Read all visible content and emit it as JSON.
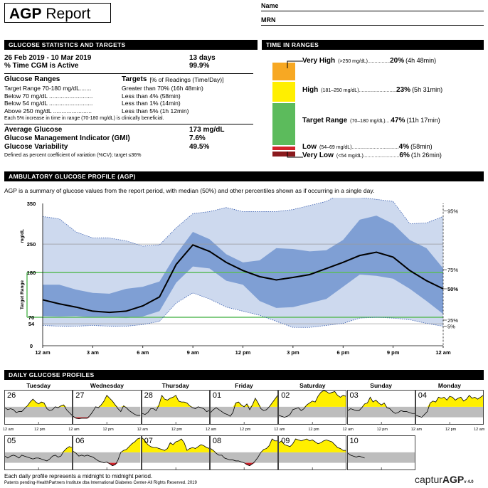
{
  "report_title_bold": "AGP",
  "report_title_rest": " Report",
  "header": {
    "name_label": "Name",
    "mrn_label": "MRN"
  },
  "stats": {
    "section_title": "GLUCOSE STATISTICS AND TARGETS",
    "date_range": "26 Feb 2019 - 10 Mar 2019",
    "days": "13 days",
    "cgm_active_label": "% Time CGM is Active",
    "cgm_active_value": "99.9%",
    "ranges_header": "Glucose Ranges",
    "targets_header": "Targets",
    "targets_note": "[% of Readings (Time/Day)]",
    "ranges": [
      {
        "label": "Target Range 70-180 mg/dL.......",
        "target": "Greater than 70% (16h 48min)"
      },
      {
        "label": "Below 70 mg/dL ..........................",
        "target": "Less than 4% (58min)"
      },
      {
        "label": "Below 54 mg/dL ..........................",
        "target": "Less than 1% (14min)"
      },
      {
        "label": "Above 250 mg/dL .......................",
        "target": "Less than 5% (1h 12min)"
      }
    ],
    "increase_note": "Each 5% increase in time in range (70-180 mg/dL) is clinically beneficial.",
    "avg_label": "Average Glucose",
    "avg_value": "173 mg/dL",
    "gmi_label": "Glucose Management Indicator (GMI)",
    "gmi_value": "7.6%",
    "var_label": "Glucose Variability",
    "var_value": "49.5%",
    "var_note": "Defined as percent coefficient of variation (%CV); target ≤36%"
  },
  "tir": {
    "section_title": "TIME IN RANGES",
    "segments": [
      {
        "name": "Very High",
        "range": "(>250 mg/dL)................",
        "pct": "20%",
        "time": "(4h 48min)",
        "color": "#f7a823",
        "value": 20
      },
      {
        "name": "High",
        "range": "(181–250 mg/dL)...........................",
        "pct": "23%",
        "time": "(5h 31min)",
        "color": "#ffef00",
        "value": 23
      },
      {
        "name": "Target Range",
        "range": "(70–180 mg/dL)....",
        "pct": "47%",
        "time": "(11h 17min)",
        "color": "#5cbb5c",
        "value": 47
      },
      {
        "name": "Low",
        "range": "(54–69 mg/dL)..................................",
        "pct": "4%",
        "time": "(58min)",
        "color": "#d2222a",
        "value": 4
      },
      {
        "name": "Very Low",
        "range": "(<54 mg/dL)..........................",
        "pct": "6%",
        "time": "(1h 26min)",
        "color": "#8b1a1e",
        "value": 6
      }
    ]
  },
  "agp": {
    "section_title": "AMBULATORY GLUCOSE PROFILE (AGP)",
    "description": "AGP is a summary of glucose values from the report period, with median (50%) and other percentiles shown as if occurring in a single day.",
    "target_range_label": "Target Range"
  },
  "chart_data": {
    "type": "line",
    "ylabel": "mg/dL",
    "ylim": [
      0,
      350
    ],
    "yticks": [
      "350",
      "250",
      "180",
      "70",
      "54",
      "0"
    ],
    "ytick_values": [
      350,
      250,
      180,
      70,
      54,
      0
    ],
    "xticks": [
      "12 am",
      "3 am",
      "6 am",
      "9 am",
      "12 pm",
      "3 pm",
      "6 pm",
      "9 pm",
      "12 am"
    ],
    "x_hours": [
      0,
      1,
      2,
      3,
      4,
      5,
      6,
      7,
      8,
      9,
      10,
      11,
      12,
      13,
      14,
      15,
      16,
      17,
      18,
      19,
      20,
      21,
      22,
      23,
      24
    ],
    "target_range": [
      70,
      180
    ],
    "percentile_labels": [
      "95%",
      "75%",
      "50%",
      "25%",
      "5%"
    ],
    "series": [
      {
        "name": "95%",
        "values": [
          318,
          312,
          280,
          265,
          265,
          258,
          245,
          248,
          290,
          325,
          330,
          340,
          330,
          330,
          330,
          335,
          345,
          355,
          378,
          365,
          360,
          355,
          300,
          302,
          318
        ]
      },
      {
        "name": "75%",
        "values": [
          150,
          150,
          138,
          130,
          128,
          140,
          145,
          158,
          225,
          280,
          262,
          225,
          205,
          210,
          240,
          238,
          232,
          235,
          260,
          310,
          320,
          300,
          260,
          240,
          190
        ]
      },
      {
        "name": "50%",
        "values": [
          113,
          103,
          95,
          85,
          82,
          85,
          98,
          120,
          200,
          248,
          232,
          205,
          185,
          170,
          162,
          168,
          175,
          190,
          205,
          222,
          230,
          218,
          185,
          160,
          140
        ]
      },
      {
        "name": "25%",
        "values": [
          73,
          72,
          73,
          70,
          70,
          68,
          72,
          85,
          155,
          195,
          190,
          160,
          150,
          110,
          93,
          95,
          105,
          115,
          145,
          175,
          172,
          165,
          140,
          110,
          78
        ]
      },
      {
        "name": "5%",
        "values": [
          50,
          48,
          48,
          50,
          48,
          48,
          52,
          60,
          105,
          130,
          115,
          95,
          85,
          75,
          60,
          45,
          45,
          50,
          55,
          68,
          70,
          68,
          64,
          55,
          48
        ]
      }
    ]
  },
  "daily": {
    "section_title": "DAILY GLUCOSE PROFILES",
    "day_names": [
      "Tuesday",
      "Wednesday",
      "Thursday",
      "Friday",
      "Saturday",
      "Sunday",
      "Monday"
    ],
    "row1_dates": [
      "26",
      "27",
      "28",
      "01",
      "02",
      "03",
      "04"
    ],
    "row2_dates": [
      "05",
      "06",
      "07",
      "08",
      "09",
      "10"
    ],
    "axis_labels": [
      "12 am",
      "12 pm",
      "12 am",
      "12 pm",
      "12 am",
      "12 pm",
      "12 am",
      "12 pm",
      "12 am",
      "12 pm",
      "12 am",
      "12 pm",
      "12 am",
      "12 pm",
      "12 am"
    ],
    "profiles_row1": [
      [
        170,
        150,
        160,
        150,
        120,
        130,
        130,
        160,
        190,
        230,
        260,
        230,
        210,
        230,
        220,
        160,
        140,
        150,
        180,
        170,
        190,
        200,
        150,
        120,
        90
      ],
      [
        80,
        60,
        55,
        60,
        60,
        60,
        90,
        130,
        180,
        170,
        200,
        240,
        300,
        270,
        240,
        200,
        160,
        130,
        190,
        170,
        140,
        120,
        100,
        90,
        90
      ],
      [
        110,
        100,
        120,
        160,
        160,
        140,
        200,
        300,
        260,
        250,
        270,
        280,
        300,
        240,
        230,
        230,
        220,
        190,
        170,
        160,
        180,
        170,
        160,
        130,
        140
      ],
      [
        120,
        150,
        170,
        150,
        130,
        110,
        100,
        80,
        120,
        220,
        230,
        200,
        180,
        210,
        150,
        200,
        270,
        220,
        160,
        140,
        150,
        180,
        220,
        260,
        300
      ],
      [
        90,
        80,
        70,
        80,
        100,
        150,
        160,
        170,
        140,
        160,
        200,
        220,
        240,
        230,
        290,
        330,
        350,
        340,
        320,
        330,
        340,
        300,
        280,
        300,
        290
      ],
      [
        140,
        160,
        150,
        140,
        140,
        170,
        210,
        220,
        280,
        230,
        250,
        220,
        200,
        220,
        170,
        160,
        130,
        110,
        120,
        140,
        130,
        130,
        120,
        110,
        110
      ],
      [
        90,
        80,
        70,
        100,
        130,
        220,
        240,
        230,
        280,
        270,
        280,
        250,
        290,
        280,
        250,
        270,
        280,
        240,
        260,
        300,
        270,
        280,
        260,
        280,
        300
      ]
    ],
    "profiles_row2": [
      [
        140,
        120,
        140,
        150,
        140,
        120,
        150,
        140,
        130,
        120,
        110,
        120,
        120,
        110,
        100,
        90,
        110,
        140,
        150,
        130,
        140,
        190,
        220,
        240,
        230
      ],
      [
        190,
        170,
        140,
        150,
        140,
        150,
        140,
        130,
        110,
        90,
        80,
        70,
        80,
        60,
        40,
        50,
        100,
        180,
        200,
        210,
        240,
        270,
        290,
        320,
        330
      ],
      [
        330,
        300,
        260,
        240,
        230,
        230,
        220,
        210,
        200,
        220,
        280,
        260,
        290,
        300,
        320,
        280,
        200,
        220,
        230,
        220,
        240,
        260,
        250,
        230,
        220
      ],
      [
        220,
        200,
        170,
        150,
        150,
        120,
        110,
        100,
        100,
        90,
        90,
        80,
        70,
        50,
        40,
        60,
        90,
        130,
        180,
        210,
        220,
        250,
        320,
        300,
        300
      ],
      [
        280,
        300,
        260,
        250,
        240,
        270,
        320,
        310,
        300,
        310,
        320,
        300,
        310,
        290,
        270,
        280,
        300,
        310,
        300,
        290,
        260,
        230,
        220,
        200,
        200
      ],
      [
        170,
        150,
        140,
        130,
        140,
        130,
        120,
        null,
        null,
        null,
        null,
        null,
        null,
        null,
        null,
        null,
        null,
        null,
        null,
        null,
        null,
        null,
        null,
        null,
        null
      ]
    ]
  },
  "footer": {
    "note": "Each daily profile represents a midnight to midnight period.",
    "patents": "Patents pending-HealthPartners Institute dba International Diabetes Center-All Rights Reserved. 2019",
    "brand_a": "captur",
    "brand_b": "AGP",
    "version": "v 4.0"
  }
}
